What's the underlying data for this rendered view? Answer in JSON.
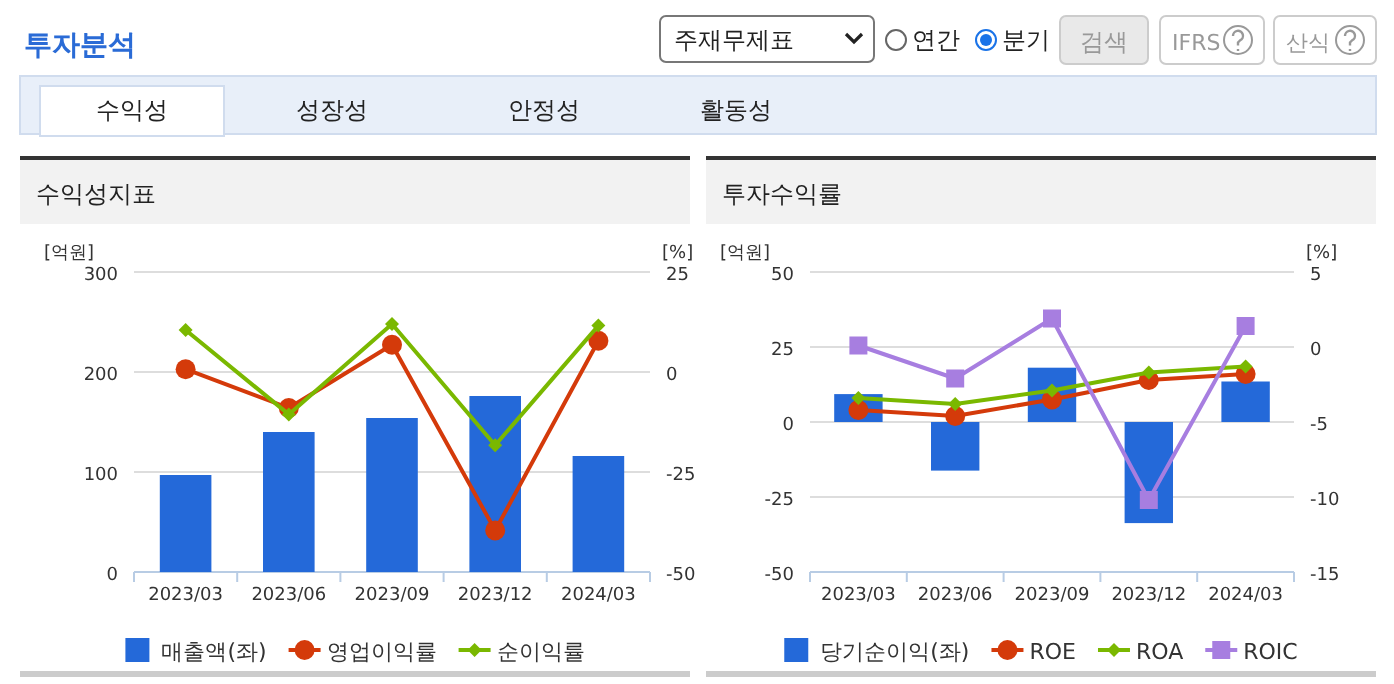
{
  "chart_data": [
    {
      "type": "other",
      "title": "투자분석",
      "annotations": [
        "주재무제표",
        "연간",
        "분기",
        "검색",
        "IFRS",
        "산식",
        "수익성",
        "성장성",
        "안정성",
        "활동성"
      ]
    },
    {
      "type": "bar",
      "title": "수익성지표",
      "ylabel": "[억원]",
      "y2label": "[%]",
      "categories": [
        "2023/03",
        "2023/06",
        "2023/09",
        "2023/12",
        "2024/03"
      ],
      "series": [
        {
          "name": "매출액(좌)",
          "type": "bar",
          "color": "#2469d9",
          "values": [
            97,
            140,
            154,
            176,
            116
          ]
        },
        {
          "name": "영업이익률",
          "type": "line",
          "axis": "y2",
          "marker": "circle",
          "color": "#d43a0a",
          "values": [
            0.7,
            -9.0,
            6.8,
            -39.6,
            7.8
          ]
        },
        {
          "name": "순이익률",
          "type": "line",
          "axis": "y2",
          "marker": "diamond",
          "color": "#7ab800",
          "values": [
            10.5,
            -10.6,
            12.0,
            -18.3,
            11.6
          ]
        }
      ],
      "ylim": [
        0,
        300
      ],
      "yticks": [
        0,
        100,
        200,
        300
      ],
      "y2lim": [
        -50,
        25
      ],
      "y2ticks": [
        -50,
        -25,
        0,
        25
      ],
      "grid": "y",
      "legend": "bottom"
    },
    {
      "type": "bar",
      "title": "투자수익률",
      "ylabel": "[억원]",
      "y2label": "[%]",
      "categories": [
        "2023/03",
        "2023/06",
        "2023/09",
        "2023/12",
        "2024/03"
      ],
      "series": [
        {
          "name": "당기순이익(좌)",
          "type": "bar",
          "color": "#2469d9",
          "values": [
            9.3,
            -16.2,
            18.1,
            -33.7,
            13.5
          ]
        },
        {
          "name": "ROE",
          "type": "line",
          "axis": "y2",
          "marker": "circle",
          "color": "#d43a0a",
          "values": [
            -4.2,
            -4.6,
            -3.5,
            -2.2,
            -1.8
          ]
        },
        {
          "name": "ROA",
          "type": "line",
          "axis": "y2",
          "marker": "diamond",
          "color": "#7ab800",
          "values": [
            -3.4,
            -3.8,
            -2.9,
            -1.7,
            -1.3
          ]
        },
        {
          "name": "ROIC",
          "type": "line",
          "axis": "y2",
          "marker": "square",
          "color": "#a77ee0",
          "values": [
            0.1,
            -2.1,
            1.9,
            -10.2,
            1.4
          ]
        }
      ],
      "ylim": [
        -50,
        50
      ],
      "yticks": [
        -50,
        -25,
        0,
        25,
        50
      ],
      "y2lim": [
        -15,
        5
      ],
      "y2ticks": [
        -15,
        -10,
        -5,
        0,
        5
      ],
      "grid": "y",
      "legend": "bottom"
    }
  ]
}
